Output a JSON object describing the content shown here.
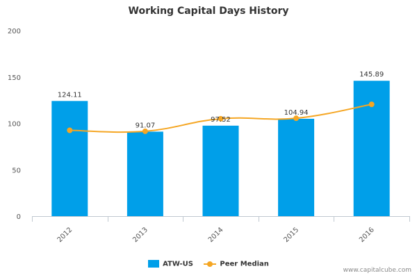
{
  "chart_data": {
    "type": "bar",
    "title": "Working Capital Days History",
    "categories": [
      "2012",
      "2013",
      "2014",
      "2015",
      "2016"
    ],
    "series": [
      {
        "name": "ATW-US",
        "type": "bar",
        "values": [
          124.11,
          91.07,
          97.52,
          104.94,
          145.89
        ],
        "data_labels": [
          "124.11",
          "91.07",
          "97.52",
          "104.94",
          "145.89"
        ]
      },
      {
        "name": "Peer Median",
        "type": "line",
        "values": [
          92.5,
          91.5,
          105,
          105.5,
          120.5
        ]
      }
    ],
    "yticks": [
      "0",
      "50",
      "100",
      "150",
      "200"
    ],
    "ylim": [
      0,
      200
    ],
    "grid": false,
    "legend": "bottom-center"
  },
  "colors": {
    "bar": "#009fe9",
    "line": "#f5a623",
    "axis": "#c0c8d0",
    "text": "#333333"
  },
  "watermark": "www.capitalcube.com"
}
